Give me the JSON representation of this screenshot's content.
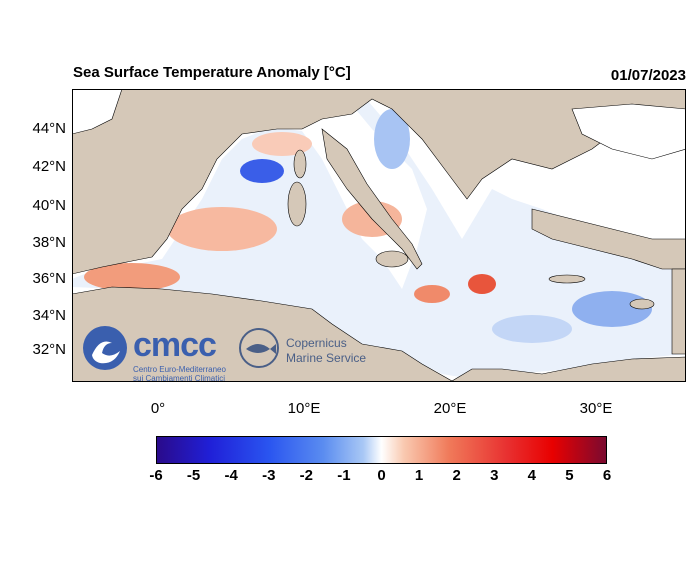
{
  "map": {
    "title": "Sea Surface Temperature Anomaly [°C]",
    "date": "01/07/2023",
    "lat_labels": [
      "44°N",
      "42°N",
      "40°N",
      "38°N",
      "36°N",
      "34°N",
      "32°N"
    ],
    "lon_labels": [
      "0°",
      "10°E",
      "20°E",
      "30°E"
    ],
    "colorbar": {
      "ticks": [
        "-6",
        "-5",
        "-4",
        "-3",
        "-2",
        "-1",
        "0",
        "1",
        "2",
        "3",
        "4",
        "5",
        "6"
      ],
      "min": -6,
      "max": 6,
      "colors": [
        "#2a0a8a",
        "#2020d8",
        "#2a55f0",
        "#5a8cf0",
        "#a9c8f5",
        "#ffffff",
        "#f9c9b0",
        "#f07a5a",
        "#e83030",
        "#e80000",
        "#7a0a30"
      ]
    },
    "land_color": "#d5c8b8",
    "logos": {
      "cmcc_name": "cmcc",
      "cmcc_sub_line1": "Centro Euro-Mediterraneo",
      "cmcc_sub_line2": "sui Cambiamenti Climatici",
      "copernicus_line1": "Copernicus",
      "copernicus_line2": "Marine Service"
    }
  }
}
